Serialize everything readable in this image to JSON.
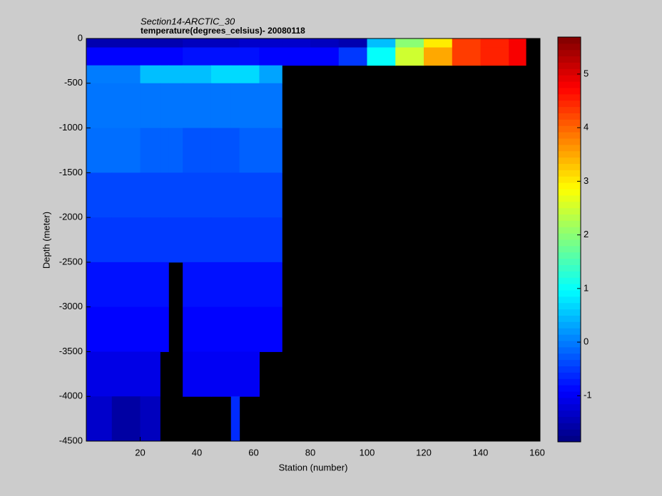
{
  "chart_data": {
    "type": "heatmap",
    "title": "Section14-ARCTIC_30",
    "subtitle": "temperature(degrees_celsius)- 20080118",
    "x_label": "Station (number)",
    "y_label": "Depth (meter)",
    "colormap": "jet",
    "x": [
      1,
      10,
      20,
      27,
      30,
      35,
      45,
      52,
      55,
      62,
      70,
      80,
      90,
      100,
      110,
      120,
      130,
      140,
      150,
      156,
      161
    ],
    "y": [
      0,
      -100,
      -300,
      -500,
      -1000,
      -1500,
      -2000,
      -2500,
      -3000,
      -3500,
      -4000,
      -4500
    ],
    "values": [
      [
        -1.5,
        -1.5,
        -1.5,
        -1.5,
        -1.5,
        -1.4,
        -1.4,
        -1.4,
        -1.3,
        -1.3,
        -1.3,
        -1.4,
        -1.5,
        0.5,
        2,
        3,
        4.3,
        4.5,
        4.8,
        null
      ],
      [
        -0.9,
        -0.9,
        -0.9,
        -0.9,
        -0.9,
        -0.8,
        -0.8,
        -0.8,
        -0.8,
        -0.9,
        -0.9,
        -0.9,
        -0.5,
        1,
        2.5,
        3.5,
        4.3,
        4.5,
        4.8,
        null
      ],
      [
        0,
        0,
        0.5,
        0.5,
        0.5,
        0.5,
        0.7,
        0.7,
        0.7,
        0.3,
        null,
        null,
        null,
        null,
        null,
        null,
        null,
        null,
        null,
        null
      ],
      [
        -0.05,
        -0.05,
        -0.05,
        -0.05,
        -0.05,
        -0.05,
        -0.05,
        -0.05,
        -0.05,
        -0.05,
        null,
        null,
        null,
        null,
        null,
        null,
        null,
        null,
        null,
        null
      ],
      [
        -0.1,
        -0.1,
        -0.2,
        -0.2,
        -0.2,
        -0.3,
        -0.3,
        -0.3,
        -0.2,
        -0.2,
        null,
        null,
        null,
        null,
        null,
        null,
        null,
        null,
        null,
        null
      ],
      [
        -0.4,
        -0.4,
        -0.4,
        -0.4,
        -0.4,
        -0.4,
        -0.4,
        -0.4,
        -0.4,
        -0.4,
        null,
        null,
        null,
        null,
        null,
        null,
        null,
        null,
        null,
        null
      ],
      [
        -0.5,
        -0.5,
        -0.5,
        -0.5,
        -0.5,
        -0.5,
        -0.5,
        -0.5,
        -0.5,
        -0.5,
        null,
        null,
        null,
        null,
        null,
        null,
        null,
        null,
        null,
        null
      ],
      [
        -0.8,
        -0.8,
        -0.8,
        -0.8,
        null,
        -0.8,
        -0.8,
        -0.8,
        -0.8,
        -0.8,
        null,
        null,
        null,
        null,
        null,
        null,
        null,
        null,
        null,
        null
      ],
      [
        -0.9,
        -0.9,
        -0.9,
        -0.9,
        null,
        -0.9,
        -0.9,
        -0.9,
        -0.9,
        -0.9,
        null,
        null,
        null,
        null,
        null,
        null,
        null,
        null,
        null,
        null
      ],
      [
        -1.1,
        -1.1,
        -1.1,
        null,
        null,
        -1.0,
        -1.0,
        -1.0,
        -1.0,
        null,
        null,
        null,
        null,
        null,
        null,
        null,
        null,
        null,
        null,
        null
      ],
      [
        -1.3,
        -1.6,
        -1.4,
        null,
        null,
        null,
        null,
        -0.6,
        null,
        null,
        null,
        null,
        null,
        null,
        null,
        null,
        null,
        null,
        null,
        null
      ]
    ],
    "xlim": [
      1,
      161
    ],
    "xticks": [
      20,
      40,
      60,
      80,
      100,
      120,
      140,
      160
    ],
    "ylim": [
      -4500,
      0
    ],
    "yticks": [
      0,
      -500,
      -1000,
      -1500,
      -2000,
      -2500,
      -3000,
      -3500,
      -4000,
      -4500
    ],
    "clim": [
      -1.86,
      5.69
    ],
    "cticks": [
      -1,
      0,
      1,
      2,
      3,
      4,
      5
    ]
  }
}
